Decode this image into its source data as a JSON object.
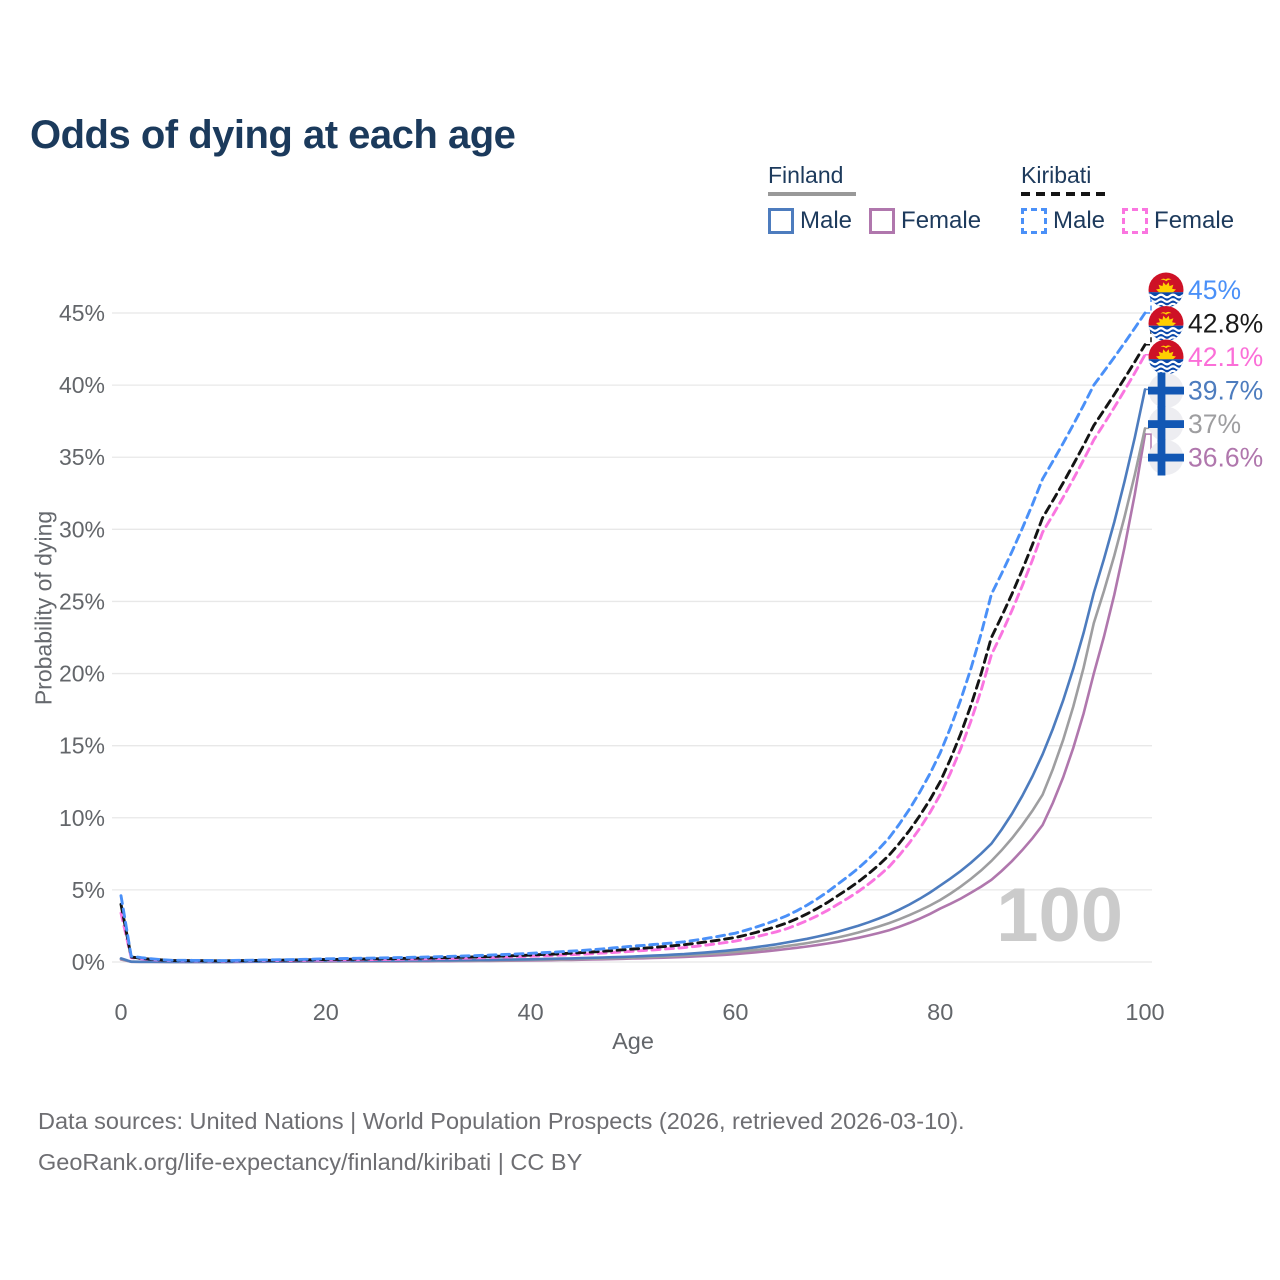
{
  "title": "Odds of dying at each age",
  "legend": {
    "groups": [
      {
        "label": "Finland",
        "line_style": "solid",
        "line_color": "#999999",
        "items": [
          {
            "label": "Male",
            "color": "#4d7cbe",
            "style": "solid"
          },
          {
            "label": "Female",
            "color": "#b077ad",
            "style": "solid"
          }
        ]
      },
      {
        "label": "Kiribati",
        "line_style": "dashed",
        "line_color": "#141414",
        "items": [
          {
            "label": "Male",
            "color": "#4a90f8",
            "style": "dashed"
          },
          {
            "label": "Female",
            "color": "#fa75e0",
            "style": "dashed"
          }
        ]
      }
    ]
  },
  "chart_data": {
    "type": "line",
    "title": "Odds of dying at each age",
    "xlabel": "Age",
    "ylabel": "Probability of dying",
    "xlim": [
      0,
      100
    ],
    "ylim_pct": [
      0,
      46
    ],
    "x_ticks": [
      0,
      20,
      40,
      60,
      80,
      100
    ],
    "y_ticks_pct": [
      0,
      5,
      10,
      15,
      20,
      25,
      30,
      35,
      40,
      45
    ],
    "y_tick_suffix": "%",
    "grid": "horizontal",
    "hover_age_watermark": "100",
    "ages": [
      0,
      1,
      5,
      10,
      15,
      20,
      25,
      30,
      35,
      40,
      45,
      50,
      55,
      60,
      65,
      70,
      75,
      80,
      85,
      90,
      95,
      100
    ],
    "series": [
      {
        "name": "Kiribati Male",
        "flag": "kiribati",
        "color": "#4a90f8",
        "dashed": true,
        "end_label": "45%",
        "end_label_color": "#4a90f8",
        "values_pct": [
          4.6,
          0.4,
          0.12,
          0.1,
          0.15,
          0.22,
          0.28,
          0.35,
          0.45,
          0.6,
          0.8,
          1.1,
          1.4,
          2.0,
          3.2,
          5.4,
          8.6,
          14.5,
          25.5,
          33.5,
          40.0,
          45.0
        ]
      },
      {
        "name": "Kiribati",
        "flag": "kiribati",
        "color": "#141414",
        "dashed": true,
        "end_label": "42.8%",
        "end_label_color": "#1a1a1a",
        "values_pct": [
          4.0,
          0.35,
          0.1,
          0.08,
          0.12,
          0.17,
          0.22,
          0.28,
          0.36,
          0.48,
          0.65,
          0.9,
          1.2,
          1.7,
          2.7,
          4.6,
          7.4,
          12.5,
          22.5,
          30.8,
          37.2,
          42.8
        ]
      },
      {
        "name": "Kiribati Female",
        "flag": "kiribati",
        "color": "#fa75e0",
        "dashed": true,
        "end_label": "42.1%",
        "end_label_color": "#fb6fd8",
        "values_pct": [
          3.4,
          0.3,
          0.09,
          0.07,
          0.1,
          0.13,
          0.17,
          0.22,
          0.29,
          0.4,
          0.54,
          0.75,
          1.0,
          1.45,
          2.3,
          4.0,
          6.6,
          11.6,
          21.3,
          29.8,
          36.2,
          42.1
        ]
      },
      {
        "name": "Finland Male",
        "flag": "finland",
        "color": "#4d7cbe",
        "dashed": false,
        "end_label": "39.7%",
        "end_label_color": "#4d7cbe",
        "values_pct": [
          0.25,
          0.02,
          0.01,
          0.01,
          0.04,
          0.08,
          0.09,
          0.11,
          0.14,
          0.19,
          0.27,
          0.38,
          0.55,
          0.85,
          1.35,
          2.1,
          3.3,
          5.3,
          8.2,
          14.4,
          25.6,
          39.7
        ]
      },
      {
        "name": "Finland",
        "flag": "finland",
        "color": "#9e9ea0",
        "dashed": false,
        "end_label": "37%",
        "end_label_color": "#9e9ea0",
        "values_pct": [
          0.21,
          0.02,
          0.01,
          0.01,
          0.03,
          0.05,
          0.06,
          0.08,
          0.1,
          0.15,
          0.21,
          0.3,
          0.45,
          0.7,
          1.1,
          1.7,
          2.7,
          4.3,
          7.0,
          11.6,
          23.5,
          37.0
        ]
      },
      {
        "name": "Finland Female",
        "flag": "finland",
        "color": "#b077ad",
        "dashed": false,
        "end_label": "36.6%",
        "end_label_color": "#b077ad",
        "values_pct": [
          0.17,
          0.015,
          0.008,
          0.008,
          0.02,
          0.03,
          0.04,
          0.05,
          0.07,
          0.11,
          0.16,
          0.24,
          0.35,
          0.55,
          0.9,
          1.4,
          2.2,
          3.7,
          5.7,
          9.5,
          20.0,
          36.6
        ]
      }
    ]
  },
  "flag_colors": {
    "kiribati_red": "#CE1126",
    "kiribati_blue": "#0a47a9",
    "kiribati_yellow": "#FFCE00",
    "finland_blue": "#1257b4",
    "finland_bg": "#ededf1"
  },
  "footer": {
    "line1": "Data sources: United Nations | World Population Prospects (2026, retrieved 2026-03-10).",
    "line2": "GeoRank.org/life-expectancy/finland/kiribati | CC BY"
  }
}
